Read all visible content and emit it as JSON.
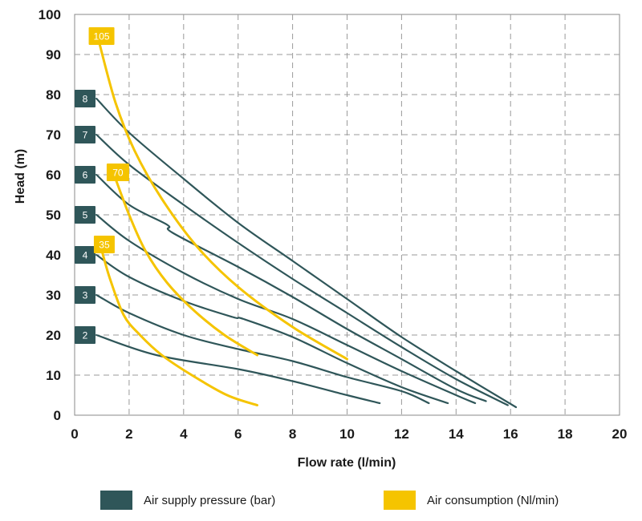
{
  "chart_data": {
    "type": "line",
    "xlabel": "Flow rate (l/min)",
    "ylabel": "Head (m)",
    "xlim": [
      0,
      20
    ],
    "ylim": [
      0,
      100
    ],
    "xticks": [
      "0",
      "2",
      "4",
      "6",
      "8",
      "10",
      "12",
      "14",
      "16",
      "18",
      "20"
    ],
    "yticks": [
      "0",
      "10",
      "20",
      "30",
      "40",
      "50",
      "60",
      "70",
      "80",
      "90",
      "100"
    ],
    "grid": true,
    "legend_position": "bottom",
    "series_groups": [
      {
        "name": "Air supply pressure (bar)",
        "color": "#2f5659",
        "curves": [
          {
            "label": "2",
            "x": [
              0.8,
              3,
              6,
              8,
              10,
              11.2
            ],
            "y": [
              20,
              15,
              11.5,
              8.5,
              5,
              3
            ]
          },
          {
            "label": "3",
            "x": [
              0.8,
              2,
              4,
              6,
              8,
              10,
              12,
              13
            ],
            "y": [
              30,
              25.5,
              20,
              16.5,
              13.5,
              9.5,
              6,
              3
            ]
          },
          {
            "label": "4",
            "x": [
              0.8,
              2,
              4,
              5.8,
              6.2,
              8,
              10,
              12,
              13.7
            ],
            "y": [
              40,
              34.5,
              28.5,
              24.5,
              24,
              19.5,
              13,
              7,
              3
            ]
          },
          {
            "label": "5",
            "x": [
              0.8,
              2,
              4,
              6,
              8,
              10,
              12,
              14,
              14.7
            ],
            "y": [
              50,
              43.5,
              35.5,
              29,
              24,
              17.5,
              11,
              5,
              3
            ]
          },
          {
            "label": "6",
            "x": [
              0.8,
              2,
              3.4,
              3.6,
              6,
              8,
              10,
              12,
              14,
              15.1
            ],
            "y": [
              60,
              52.5,
              47.5,
              45.5,
              37,
              29.5,
              21.5,
              14,
              6.5,
              3.5
            ]
          },
          {
            "label": "7",
            "x": [
              0.8,
              2,
              4,
              6,
              8,
              10,
              12,
              14,
              15.9
            ],
            "y": [
              70,
              62.5,
              52.5,
              43,
              34,
              25.5,
              17,
              9,
              2.5
            ]
          },
          {
            "label": "8",
            "x": [
              0.8,
              2,
              4,
              6,
              8,
              10,
              12,
              14,
              16.2
            ],
            "y": [
              79,
              70.5,
              59,
              48,
              38.5,
              29,
              19.5,
              11,
              2
            ]
          }
        ]
      },
      {
        "name": "Air consumption (Nl/min)",
        "color": "#f5c400",
        "curves": [
          {
            "label": "35",
            "x": [
              1.0,
              1.3,
              1.8,
              2.4,
              3.2,
              4.3,
              5.6,
              6.7
            ],
            "y": [
              41,
              34,
              25,
              20,
              15,
              10,
              5,
              2.5
            ]
          },
          {
            "label": "70",
            "x": [
              1.5,
              2,
              2.6,
              3.4,
              4.4,
              5.5,
              6.7
            ],
            "y": [
              59,
              50,
              41,
              33,
              26,
              20,
              15
            ]
          },
          {
            "label": "105",
            "x": [
              0.9,
              1.5,
              2.2,
              3.2,
              4.5,
              6,
              8,
              10
            ],
            "y": [
              93,
              78,
              66,
              54,
              42,
              32,
              22,
              14
            ]
          }
        ]
      }
    ]
  }
}
